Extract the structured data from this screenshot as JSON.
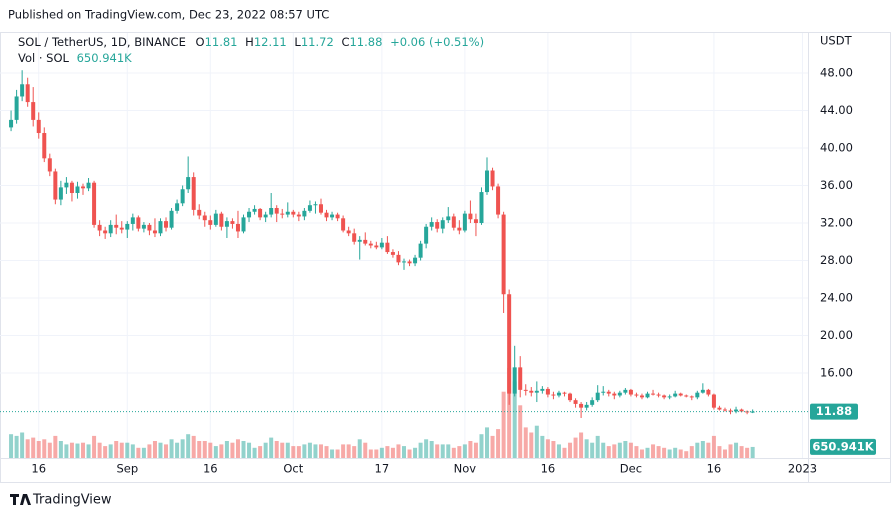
{
  "chart_data": {
    "type": "candlestick",
    "header": "Published on TradingView.com, Dec 23, 2022 08:57 UTC",
    "symbol": "SOL / TetherUS, 1D, BINANCE",
    "ohlc_labels": [
      "O",
      "H",
      "L",
      "C"
    ],
    "change_label": "+0.06 (+0.51%)",
    "volume_title": "Vol · SOL",
    "last_volume_label": "650.941K",
    "price_axis_label": "USDT",
    "brand": "TradingView",
    "up_color": "#26a69a",
    "down_color": "#ef5350",
    "grid": true,
    "xlim": [
      "2022-08-09",
      "2023-01-02"
    ],
    "ylim": [
      6.93,
      52.27
    ],
    "volume_lim": [
      0,
      25000000
    ],
    "yticks": [
      {
        "value": 16,
        "label": "16.00"
      },
      {
        "value": 20,
        "label": "20.00"
      },
      {
        "value": 24,
        "label": "24.00"
      },
      {
        "value": 28,
        "label": "28.00"
      },
      {
        "value": 32,
        "label": "32.00"
      },
      {
        "value": 36,
        "label": "36.00"
      },
      {
        "value": 40,
        "label": "40.00"
      },
      {
        "value": 44,
        "label": "44.00"
      },
      {
        "value": 48,
        "label": "48.00"
      }
    ],
    "xticks": [
      {
        "value": "2022-08-16",
        "label": "16"
      },
      {
        "value": "2022-09-01",
        "label": "Sep"
      },
      {
        "value": "2022-09-16",
        "label": "16"
      },
      {
        "value": "2022-10-01",
        "label": "Oct"
      },
      {
        "value": "2022-10-17",
        "label": "17"
      },
      {
        "value": "2022-11-01",
        "label": "Nov"
      },
      {
        "value": "2022-11-16",
        "label": "16"
      },
      {
        "value": "2022-12-01",
        "label": "Dec"
      },
      {
        "value": "2022-12-16",
        "label": "16"
      },
      {
        "value": "2023-01-01",
        "label": "2023"
      }
    ],
    "x": [
      "2022-08-11",
      "2022-08-12",
      "2022-08-13",
      "2022-08-14",
      "2022-08-15",
      "2022-08-16",
      "2022-08-17",
      "2022-08-18",
      "2022-08-19",
      "2022-08-20",
      "2022-08-21",
      "2022-08-22",
      "2022-08-23",
      "2022-08-24",
      "2022-08-25",
      "2022-08-26",
      "2022-08-27",
      "2022-08-28",
      "2022-08-29",
      "2022-08-30",
      "2022-08-31",
      "2022-09-01",
      "2022-09-02",
      "2022-09-03",
      "2022-09-04",
      "2022-09-05",
      "2022-09-06",
      "2022-09-07",
      "2022-09-08",
      "2022-09-09",
      "2022-09-10",
      "2022-09-11",
      "2022-09-12",
      "2022-09-13",
      "2022-09-14",
      "2022-09-15",
      "2022-09-16",
      "2022-09-17",
      "2022-09-18",
      "2022-09-19",
      "2022-09-20",
      "2022-09-21",
      "2022-09-22",
      "2022-09-23",
      "2022-09-24",
      "2022-09-25",
      "2022-09-26",
      "2022-09-27",
      "2022-09-28",
      "2022-09-29",
      "2022-09-30",
      "2022-10-01",
      "2022-10-02",
      "2022-10-03",
      "2022-10-04",
      "2022-10-05",
      "2022-10-06",
      "2022-10-07",
      "2022-10-08",
      "2022-10-09",
      "2022-10-10",
      "2022-10-11",
      "2022-10-12",
      "2022-10-13",
      "2022-10-14",
      "2022-10-15",
      "2022-10-16",
      "2022-10-17",
      "2022-10-18",
      "2022-10-19",
      "2022-10-20",
      "2022-10-21",
      "2022-10-22",
      "2022-10-23",
      "2022-10-24",
      "2022-10-25",
      "2022-10-26",
      "2022-10-27",
      "2022-10-28",
      "2022-10-29",
      "2022-10-30",
      "2022-10-31",
      "2022-11-01",
      "2022-11-02",
      "2022-11-03",
      "2022-11-04",
      "2022-11-05",
      "2022-11-06",
      "2022-11-07",
      "2022-11-08",
      "2022-11-09",
      "2022-11-10",
      "2022-11-11",
      "2022-11-12",
      "2022-11-13",
      "2022-11-14",
      "2022-11-15",
      "2022-11-16",
      "2022-11-17",
      "2022-11-18",
      "2022-11-19",
      "2022-11-20",
      "2022-11-21",
      "2022-11-22",
      "2022-11-23",
      "2022-11-24",
      "2022-11-25",
      "2022-11-26",
      "2022-11-27",
      "2022-11-28",
      "2022-11-29",
      "2022-11-30",
      "2022-12-01",
      "2022-12-02",
      "2022-12-03",
      "2022-12-04",
      "2022-12-05",
      "2022-12-06",
      "2022-12-07",
      "2022-12-08",
      "2022-12-09",
      "2022-12-10",
      "2022-12-11",
      "2022-12-12",
      "2022-12-13",
      "2022-12-14",
      "2022-12-15",
      "2022-12-16",
      "2022-12-17",
      "2022-12-18",
      "2022-12-19",
      "2022-12-20",
      "2022-12-21",
      "2022-12-22",
      "2022-12-23"
    ],
    "open": [
      42.2,
      43.0,
      45.5,
      46.8,
      44.9,
      43.0,
      41.6,
      38.9,
      37.5,
      34.5,
      35.8,
      36.3,
      35.2,
      35.9,
      35.7,
      36.3,
      31.8,
      31.2,
      30.9,
      31.8,
      31.5,
      31.3,
      31.9,
      32.6,
      31.4,
      31.8,
      31.2,
      30.9,
      32.2,
      31.5,
      33.3,
      34.1,
      35.6,
      36.9,
      33.4,
      32.8,
      32.3,
      31.8,
      33.0,
      31.6,
      32.2,
      31.9,
      31.1,
      32.6,
      33.2,
      33.5,
      32.6,
      32.9,
      33.6,
      33.0,
      32.9,
      33.2,
      32.9,
      32.7,
      33.3,
      33.9,
      34.0,
      33.1,
      32.6,
      32.9,
      32.5,
      31.2,
      30.9,
      30.0,
      30.2,
      29.8,
      29.6,
      29.4,
      29.9,
      28.9,
      28.6,
      27.8,
      27.9,
      27.7,
      28.3,
      29.8,
      31.6,
      32.1,
      31.4,
      32.3,
      32.7,
      31.5,
      31.2,
      33.0,
      32.4,
      32.0,
      35.3,
      37.6,
      35.9,
      32.9,
      24.4,
      13.8,
      16.6,
      14.2,
      14.1,
      13.9,
      14.1,
      14.3,
      13.7,
      13.6,
      13.9,
      13.8,
      13.1,
      12.7,
      12.3,
      12.6,
      13.1,
      13.9,
      14.0,
      13.8,
      13.6,
      13.9,
      14.2,
      13.7,
      13.6,
      13.4,
      13.8,
      13.7,
      13.6,
      13.4,
      13.5,
      13.8,
      13.6,
      13.5,
      13.4,
      13.9,
      14.2,
      13.7,
      12.3,
      12.1,
      12.0,
      11.9,
      12.1,
      11.9,
      11.81
    ],
    "high": [
      44.0,
      46.2,
      48.3,
      47.5,
      46.5,
      43.8,
      42.2,
      39.4,
      37.8,
      36.5,
      36.9,
      36.5,
      36.4,
      36.2,
      36.8,
      36.5,
      32.3,
      31.6,
      32.3,
      32.9,
      32.2,
      32.2,
      33.0,
      32.8,
      32.1,
      32.0,
      32.5,
      32.5,
      32.6,
      33.6,
      34.5,
      36.0,
      39.1,
      37.4,
      34.0,
      33.2,
      32.8,
      33.4,
      33.2,
      32.6,
      32.5,
      33.3,
      32.9,
      33.6,
      33.9,
      33.6,
      33.2,
      35.2,
      33.9,
      33.5,
      34.2,
      33.4,
      33.2,
      33.6,
      34.4,
      34.3,
      34.6,
      33.4,
      33.2,
      33.1,
      32.8,
      31.6,
      31.4,
      30.6,
      31.0,
      30.1,
      30.0,
      30.4,
      30.6,
      29.2,
      29.0,
      28.2,
      28.1,
      28.6,
      30.1,
      31.9,
      32.6,
      32.4,
      32.6,
      33.7,
      33.0,
      32.3,
      33.3,
      34.4,
      33.0,
      35.8,
      39.0,
      37.9,
      36.2,
      33.2,
      24.9,
      18.9,
      17.8,
      14.8,
      14.5,
      15.1,
      14.6,
      14.5,
      14.0,
      14.1,
      14.0,
      13.9,
      13.3,
      12.9,
      12.9,
      13.4,
      14.7,
      14.6,
      14.2,
      14.0,
      14.1,
      14.4,
      14.3,
      13.9,
      13.8,
      14.0,
      14.2,
      13.9,
      13.7,
      13.7,
      14.1,
      13.9,
      13.7,
      13.6,
      14.1,
      14.9,
      14.3,
      13.8,
      12.5,
      12.3,
      12.2,
      12.4,
      12.2,
      12.0,
      12.11
    ],
    "low": [
      41.8,
      42.6,
      45.0,
      44.4,
      42.3,
      41.0,
      38.5,
      37.0,
      34.0,
      33.9,
      35.1,
      34.3,
      34.6,
      35.0,
      35.4,
      31.5,
      30.6,
      30.3,
      30.5,
      30.8,
      30.9,
      30.4,
      31.2,
      31.1,
      31.0,
      30.7,
      30.5,
      30.6,
      31.1,
      31.3,
      33.0,
      33.8,
      35.2,
      32.8,
      32.4,
      31.6,
      31.3,
      31.6,
      31.2,
      30.4,
      31.4,
      30.4,
      30.9,
      32.1,
      32.9,
      32.3,
      32.1,
      32.6,
      32.1,
      32.5,
      32.6,
      32.6,
      32.2,
      32.3,
      33.1,
      33.0,
      32.9,
      32.2,
      32.3,
      32.2,
      31.0,
      30.6,
      29.7,
      28.1,
      29.6,
      29.3,
      29.2,
      29.2,
      28.7,
      28.3,
      27.5,
      27.0,
      27.4,
      27.4,
      28.0,
      29.3,
      31.2,
      31.0,
      30.9,
      32.0,
      31.2,
      30.8,
      31.0,
      32.0,
      30.6,
      31.8,
      35.0,
      35.5,
      32.5,
      22.4,
      12.6,
      13.5,
      13.4,
      13.6,
      13.5,
      12.9,
      13.8,
      13.4,
      13.2,
      13.4,
      13.5,
      12.9,
      12.3,
      11.2,
      12.0,
      12.4,
      12.9,
      13.6,
      13.5,
      13.2,
      13.4,
      13.7,
      13.5,
      13.4,
      13.2,
      13.3,
      13.6,
      13.4,
      13.2,
      13.2,
      13.4,
      13.5,
      13.4,
      13.1,
      13.2,
      13.8,
      13.5,
      12.1,
      12.0,
      11.9,
      11.6,
      11.7,
      11.8,
      11.6,
      11.72
    ],
    "close": [
      43.0,
      45.5,
      46.8,
      44.9,
      43.0,
      41.6,
      38.9,
      37.5,
      34.5,
      35.8,
      36.3,
      35.2,
      35.9,
      35.7,
      36.3,
      31.8,
      31.2,
      30.9,
      31.8,
      31.5,
      31.3,
      31.9,
      32.6,
      31.4,
      31.8,
      31.2,
      30.9,
      32.2,
      31.5,
      33.3,
      34.1,
      35.6,
      36.9,
      33.4,
      32.8,
      32.3,
      31.8,
      33.0,
      31.6,
      32.2,
      31.9,
      31.1,
      32.6,
      33.2,
      33.5,
      32.6,
      32.9,
      33.6,
      33.0,
      32.9,
      33.2,
      32.9,
      32.7,
      33.3,
      33.9,
      34.0,
      33.1,
      32.6,
      32.9,
      32.5,
      31.2,
      30.9,
      30.0,
      30.2,
      29.8,
      29.6,
      29.4,
      29.9,
      28.9,
      28.6,
      27.8,
      27.9,
      27.7,
      28.3,
      29.8,
      31.6,
      32.1,
      31.4,
      32.3,
      32.7,
      31.5,
      31.2,
      33.0,
      32.4,
      32.0,
      35.3,
      37.6,
      35.9,
      32.9,
      24.4,
      13.8,
      16.6,
      14.2,
      14.1,
      13.9,
      14.1,
      14.3,
      13.7,
      13.6,
      13.9,
      13.8,
      13.1,
      12.7,
      12.3,
      12.6,
      13.1,
      13.9,
      14.0,
      13.8,
      13.6,
      13.9,
      14.2,
      13.7,
      13.6,
      13.4,
      13.8,
      13.7,
      13.6,
      13.4,
      13.5,
      13.8,
      13.6,
      13.5,
      13.4,
      13.9,
      14.2,
      13.7,
      12.3,
      12.1,
      12.0,
      11.9,
      12.1,
      11.9,
      11.82,
      11.88
    ],
    "volume": [
      1400000,
      1300000,
      1500000,
      1100000,
      1200000,
      1000000,
      1100000,
      900000,
      1300000,
      1000000,
      800000,
      900000,
      850000,
      900000,
      800000,
      1300000,
      900000,
      700000,
      800000,
      1000000,
      900000,
      900000,
      800000,
      600000,
      600000,
      800000,
      1000000,
      900000,
      800000,
      1100000,
      900000,
      1100000,
      1400000,
      1300000,
      1000000,
      1000000,
      900000,
      700000,
      800000,
      1000000,
      900000,
      1100000,
      1000000,
      900000,
      600000,
      700000,
      900000,
      1200000,
      1000000,
      900000,
      900000,
      700000,
      700000,
      800000,
      900000,
      800000,
      800000,
      700000,
      500000,
      500000,
      800000,
      800000,
      700000,
      1100000,
      900000,
      500000,
      500000,
      600000,
      700000,
      600000,
      800000,
      700000,
      500000,
      600000,
      900000,
      1100000,
      1000000,
      800000,
      800000,
      800000,
      600000,
      700000,
      800000,
      1000000,
      900000,
      1400000,
      1800000,
      1300000,
      1700000,
      3900000,
      5300000,
      4500000,
      3100000,
      1800000,
      1500000,
      1900000,
      1300000,
      1100000,
      1000000,
      800000,
      600000,
      900000,
      1200000,
      1500000,
      1100000,
      900000,
      1300000,
      900000,
      700000,
      800000,
      900000,
      1000000,
      900000,
      700000,
      500000,
      600000,
      800000,
      700000,
      600000,
      500000,
      600000,
      500000,
      400000,
      700000,
      900000,
      1000000,
      900000,
      1300000,
      700000,
      500000,
      800000,
      900000,
      700000,
      600000,
      650941
    ]
  }
}
